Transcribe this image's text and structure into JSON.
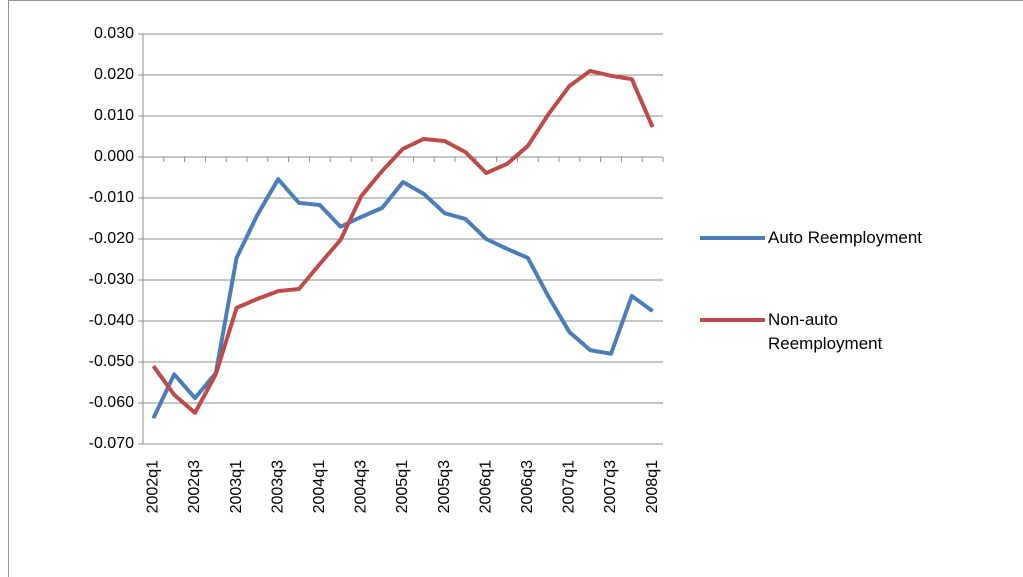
{
  "chart_data": {
    "type": "line",
    "categories": [
      "2002q1",
      null,
      "2002q3",
      null,
      "2003q1",
      null,
      "2003q3",
      null,
      "2004q1",
      null,
      "2004q3",
      null,
      "2005q1",
      null,
      "2005q3",
      null,
      "2006q1",
      null,
      "2006q3",
      null,
      "2007q1",
      null,
      "2007q3",
      null,
      "2008q1"
    ],
    "series": [
      {
        "name": "Auto Reemployment",
        "color": "#4a7ebb",
        "values": [
          -0.0637,
          -0.053,
          -0.0588,
          -0.0527,
          -0.0246,
          -0.0141,
          -0.0054,
          -0.0112,
          -0.0117,
          -0.017,
          -0.0146,
          -0.0124,
          -0.0061,
          -0.009,
          -0.0137,
          -0.0151,
          -0.02,
          -0.0224,
          -0.0246,
          -0.0341,
          -0.0427,
          -0.0471,
          -0.048,
          -0.0339,
          -0.0376
        ]
      },
      {
        "name": "Non-auto Reemployment",
        "color": "#be4b48",
        "values": [
          -0.051,
          -0.058,
          -0.0624,
          -0.053,
          -0.0368,
          -0.0346,
          -0.0327,
          -0.0322,
          -0.0261,
          -0.0202,
          -0.0095,
          -0.0034,
          0.002,
          0.0044,
          0.0039,
          0.0012,
          -0.0039,
          -0.0017,
          0.0027,
          0.0105,
          0.0173,
          0.021,
          0.0198,
          0.019,
          0.0073
        ]
      }
    ],
    "ylim": [
      -0.07,
      0.03
    ],
    "yticks": [
      {
        "value": -0.07,
        "label": "-0.070"
      },
      {
        "value": -0.06,
        "label": "-0.060"
      },
      {
        "value": -0.05,
        "label": "-0.050"
      },
      {
        "value": -0.04,
        "label": "-0.040"
      },
      {
        "value": -0.03,
        "label": "-0.030"
      },
      {
        "value": -0.02,
        "label": "-0.020"
      },
      {
        "value": -0.01,
        "label": "-0.010"
      },
      {
        "value": 0,
        "label": "0.000"
      },
      {
        "value": 0.01,
        "label": "0.010"
      },
      {
        "value": 0.02,
        "label": "0.020"
      },
      {
        "value": 0.03,
        "label": "0.030"
      }
    ],
    "grid": true,
    "legend": "right"
  }
}
